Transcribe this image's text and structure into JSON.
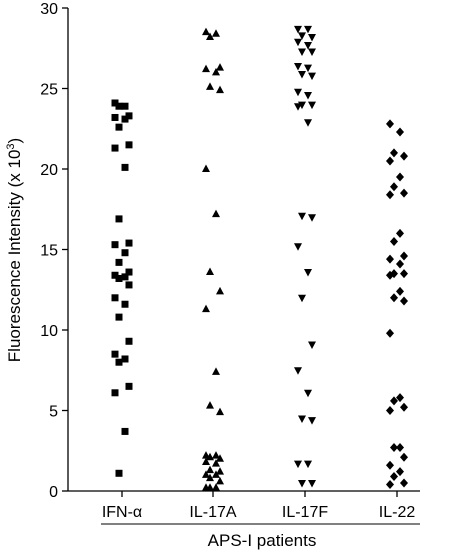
{
  "chart_data": {
    "type": "scatter",
    "title": "",
    "ylabel_main": "Fluorescence Intensity (x 10",
    "ylabel_sup": "3",
    "ylabel_tail": ")",
    "xlabel": "APS-I patients",
    "ylim": [
      0,
      30
    ],
    "yticks": [
      "0",
      "5",
      "10",
      "15",
      "20",
      "25",
      "30"
    ],
    "grid": false,
    "categories": [
      "IFN-α",
      "IL-17A",
      "IL-17F",
      "IL-22"
    ],
    "series": [
      {
        "marker": "square",
        "values": [
          24.1,
          23.9,
          23.9,
          23.3,
          23.2,
          23.1,
          22.6,
          21.5,
          21.3,
          20.1,
          16.9,
          15.4,
          15.3,
          14.8,
          14.2,
          13.6,
          13.4,
          13.3,
          13.2,
          12.8,
          12.0,
          11.6,
          10.8,
          9.3,
          8.5,
          8.2,
          8.0,
          6.5,
          6.1,
          3.7,
          1.1
        ]
      },
      {
        "marker": "triangle-up",
        "values": [
          28.5,
          28.4,
          28.2,
          26.3,
          26.2,
          26.0,
          25.1,
          24.9,
          20.0,
          17.2,
          13.6,
          12.4,
          11.3,
          7.4,
          5.3,
          4.9,
          2.2,
          2.2,
          2.1,
          2.0,
          1.8,
          1.7,
          1.3,
          1.2,
          1.0,
          1.0,
          0.8,
          0.6,
          0.2,
          0.2,
          0.2
        ]
      },
      {
        "marker": "triangle-down",
        "values": [
          28.7,
          28.7,
          28.3,
          28.2,
          27.9,
          27.7,
          27.3,
          27.3,
          26.4,
          26.3,
          25.9,
          25.8,
          24.8,
          24.6,
          24.0,
          24.0,
          23.9,
          22.9,
          17.1,
          17.0,
          15.2,
          13.6,
          12.0,
          9.1,
          7.5,
          6.1,
          4.5,
          4.4,
          1.7,
          1.7,
          0.5,
          0.5
        ]
      },
      {
        "marker": "diamond",
        "values": [
          22.8,
          22.3,
          21.0,
          20.8,
          20.5,
          19.5,
          18.9,
          18.5,
          18.4,
          16.0,
          15.5,
          14.6,
          14.4,
          14.1,
          13.5,
          13.5,
          13.4,
          12.4,
          12.0,
          11.8,
          9.8,
          5.8,
          5.6,
          5.2,
          5.0,
          2.7,
          2.7,
          2.1,
          1.6,
          1.2,
          0.9,
          0.5,
          0.4
        ]
      }
    ]
  }
}
